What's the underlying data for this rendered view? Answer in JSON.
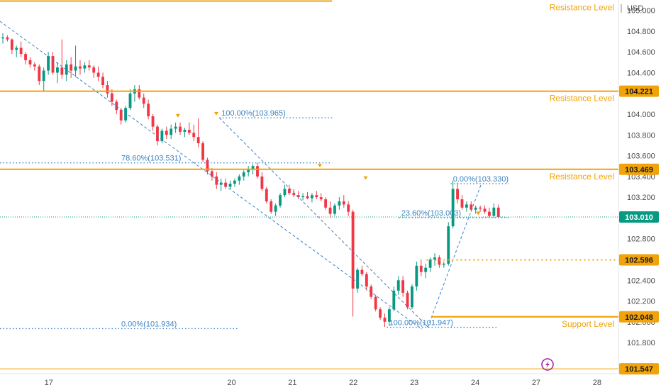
{
  "chart_data": {
    "type": "candlestick",
    "currency": "USD",
    "ylim": [
      101.5,
      105.1
    ],
    "yticks": [
      105.0,
      104.8,
      104.6,
      104.4,
      104.0,
      103.8,
      103.6,
      103.4,
      103.2,
      102.8,
      102.6,
      102.4,
      102.2,
      102.0,
      101.8
    ],
    "ytick_labels": [
      "105.000",
      "104.800",
      "104.600",
      "104.400",
      "104.000",
      "103.800",
      "103.600",
      "103.400",
      "103.200",
      "102.800",
      "102.600",
      "102.400",
      "102.200",
      "102.000",
      "101.800"
    ],
    "x_dates": [
      "17",
      "20",
      "21",
      "22",
      "23",
      "24",
      "27",
      "28"
    ],
    "x_date_positions": [
      0.5,
      3.5,
      4.5,
      5.5,
      6.5,
      7.5,
      8.5,
      9.5
    ],
    "x_range": [
      -0.3,
      9.85
    ],
    "levels": [
      {
        "price": 105.09,
        "label": "Resistance Level",
        "x_end": 5.15,
        "badge": ""
      },
      {
        "price": 104.221,
        "label": "Resistance Level",
        "x_start": -0.3,
        "badge": "104.221"
      },
      {
        "price": 103.469,
        "label": "Resistance Level",
        "x_start": -0.3,
        "badge": "103.469"
      },
      {
        "price": 102.048,
        "label": "Support Level",
        "x_start": 6.78,
        "badge": "102.048"
      }
    ],
    "dotted_levels": [
      {
        "price": 102.596,
        "x_start": 6.7,
        "badge": "102.596",
        "color": "#f0a30a"
      }
    ],
    "current_price": {
      "price": 103.01,
      "badge": "103.010"
    },
    "bottom_badge": {
      "price": 101.547,
      "badge": "101.547"
    },
    "fib_retracements": [
      {
        "price": 103.965,
        "label": "100.00%(103.965)",
        "x_start": 3.3,
        "x_end": 5.15
      },
      {
        "price": 103.531,
        "label": "78.60%(103.531)",
        "x_start": -0.3,
        "x_end": 5.15
      },
      {
        "price": 101.934,
        "label": "0.00%(101.934)",
        "x_start": -0.3,
        "x_end": 3.6
      },
      {
        "price": 103.33,
        "label": "0.00%(103.330)",
        "x_start": 7.1,
        "x_end": 8.05
      },
      {
        "price": 103.003,
        "label": "23.60%(103.003)",
        "x_start": 6.25,
        "x_end": 8.05
      },
      {
        "price": 101.947,
        "label": "100.00%(101.947)",
        "x_start": 6.05,
        "x_end": 7.85
      }
    ],
    "candles": [
      [
        104.73,
        104.78,
        104.68,
        104.74
      ],
      [
        104.74,
        104.76,
        104.7,
        104.72
      ],
      [
        104.72,
        104.73,
        104.58,
        104.62
      ],
      [
        104.62,
        104.66,
        104.55,
        104.64
      ],
      [
        104.64,
        104.7,
        104.55,
        104.58
      ],
      [
        104.58,
        104.6,
        104.48,
        104.52
      ],
      [
        104.52,
        104.55,
        104.45,
        104.48
      ],
      [
        104.48,
        104.5,
        104.42,
        104.46
      ],
      [
        104.46,
        104.48,
        104.28,
        104.32
      ],
      [
        104.32,
        104.45,
        104.22,
        104.42
      ],
      [
        104.42,
        104.6,
        104.38,
        104.56
      ],
      [
        104.56,
        104.6,
        104.38,
        104.4
      ],
      [
        104.4,
        104.5,
        104.3,
        104.45
      ],
      [
        104.45,
        104.72,
        104.34,
        104.38
      ],
      [
        104.38,
        104.52,
        104.32,
        104.48
      ],
      [
        104.48,
        104.55,
        104.35,
        104.42
      ],
      [
        104.42,
        104.66,
        104.36,
        104.46
      ],
      [
        104.46,
        104.52,
        104.38,
        104.44
      ],
      [
        104.44,
        104.5,
        104.4,
        104.47
      ],
      [
        104.47,
        104.52,
        104.42,
        104.45
      ],
      [
        104.45,
        104.47,
        104.35,
        104.4
      ],
      [
        104.4,
        104.46,
        104.32,
        104.36
      ],
      [
        104.36,
        104.4,
        104.25,
        104.28
      ],
      [
        104.28,
        104.32,
        104.16,
        104.2
      ],
      [
        104.2,
        104.24,
        104.08,
        104.12
      ],
      [
        104.12,
        104.14,
        104.0,
        104.04
      ],
      [
        104.04,
        104.06,
        103.9,
        103.94
      ],
      [
        103.94,
        104.08,
        103.92,
        104.06
      ],
      [
        104.06,
        104.24,
        104.04,
        104.2
      ],
      [
        104.2,
        104.28,
        104.12,
        104.24
      ],
      [
        104.24,
        104.28,
        104.14,
        104.16
      ],
      [
        104.16,
        104.2,
        104.06,
        104.1
      ],
      [
        104.1,
        104.14,
        103.95,
        103.98
      ],
      [
        103.98,
        104.0,
        103.84,
        103.88
      ],
      [
        103.88,
        103.9,
        103.7,
        103.74
      ],
      [
        103.74,
        103.86,
        103.72,
        103.84
      ],
      [
        103.84,
        103.88,
        103.76,
        103.8
      ],
      [
        103.8,
        103.9,
        103.76,
        103.86
      ],
      [
        103.86,
        103.92,
        103.82,
        103.88
      ],
      [
        103.88,
        103.92,
        103.8,
        103.83
      ],
      [
        103.83,
        103.87,
        103.78,
        103.85
      ],
      [
        103.85,
        103.92,
        103.8,
        103.82
      ],
      [
        103.82,
        103.9,
        103.74,
        103.78
      ],
      [
        103.78,
        103.96,
        103.68,
        103.72
      ],
      [
        103.72,
        103.74,
        103.54,
        103.56
      ],
      [
        103.56,
        103.58,
        103.42,
        103.45
      ],
      [
        103.45,
        103.48,
        103.36,
        103.4
      ],
      [
        103.4,
        103.44,
        103.28,
        103.32
      ],
      [
        103.32,
        103.38,
        103.26,
        103.34
      ],
      [
        103.34,
        103.38,
        103.28,
        103.3
      ],
      [
        103.3,
        103.36,
        103.28,
        103.33
      ],
      [
        103.33,
        103.38,
        103.3,
        103.36
      ],
      [
        103.36,
        103.42,
        103.32,
        103.4
      ],
      [
        103.4,
        103.46,
        103.36,
        103.44
      ],
      [
        103.44,
        103.5,
        103.4,
        103.47
      ],
      [
        103.47,
        103.52,
        103.42,
        103.5
      ],
      [
        103.5,
        103.53,
        103.38,
        103.4
      ],
      [
        103.4,
        103.44,
        103.26,
        103.28
      ],
      [
        103.28,
        103.3,
        103.14,
        103.16
      ],
      [
        103.16,
        103.18,
        103.04,
        103.06
      ],
      [
        103.06,
        103.14,
        103.02,
        103.12
      ],
      [
        103.12,
        103.24,
        103.1,
        103.22
      ],
      [
        103.22,
        103.32,
        103.2,
        103.28
      ],
      [
        103.28,
        103.32,
        103.22,
        103.24
      ],
      [
        103.24,
        103.28,
        103.2,
        103.22
      ],
      [
        103.22,
        103.26,
        103.18,
        103.2
      ],
      [
        103.2,
        103.24,
        103.17,
        103.21
      ],
      [
        103.21,
        103.25,
        103.18,
        103.19
      ],
      [
        103.19,
        103.24,
        103.15,
        103.22
      ],
      [
        103.22,
        103.26,
        103.18,
        103.2
      ],
      [
        103.2,
        103.24,
        103.16,
        103.18
      ],
      [
        103.18,
        103.2,
        103.08,
        103.1
      ],
      [
        103.1,
        103.16,
        103.0,
        103.04
      ],
      [
        103.04,
        103.14,
        103.02,
        103.12
      ],
      [
        103.12,
        103.2,
        103.08,
        103.16
      ],
      [
        103.16,
        103.22,
        103.1,
        103.13
      ],
      [
        103.13,
        103.16,
        103.02,
        103.06
      ],
      [
        103.06,
        103.08,
        102.05,
        102.32
      ],
      [
        102.32,
        102.52,
        102.28,
        102.5
      ],
      [
        102.5,
        102.54,
        102.44,
        102.46
      ],
      [
        102.46,
        102.48,
        102.3,
        102.34
      ],
      [
        102.34,
        102.36,
        102.22,
        102.24
      ],
      [
        102.24,
        102.26,
        102.1,
        102.12
      ],
      [
        102.12,
        102.14,
        102.02,
        102.04
      ],
      [
        102.04,
        102.08,
        101.95,
        102.0
      ],
      [
        102.0,
        102.14,
        101.96,
        102.12
      ],
      [
        102.12,
        102.34,
        102.1,
        102.3
      ],
      [
        102.3,
        102.44,
        102.26,
        102.4
      ],
      [
        102.4,
        102.44,
        102.24,
        102.28
      ],
      [
        102.28,
        102.3,
        102.12,
        102.14
      ],
      [
        102.14,
        102.36,
        102.12,
        102.34
      ],
      [
        102.34,
        102.58,
        102.3,
        102.54
      ],
      [
        102.54,
        102.6,
        102.44,
        102.48
      ],
      [
        102.48,
        102.56,
        102.42,
        102.52
      ],
      [
        102.52,
        102.62,
        102.48,
        102.6
      ],
      [
        102.6,
        102.66,
        102.54,
        102.62
      ],
      [
        102.62,
        102.64,
        102.52,
        102.55
      ],
      [
        102.55,
        102.58,
        102.52,
        102.56
      ],
      [
        102.56,
        102.96,
        102.54,
        102.92
      ],
      [
        102.92,
        103.36,
        102.9,
        103.28
      ],
      [
        103.28,
        103.34,
        103.14,
        103.18
      ],
      [
        103.18,
        103.22,
        103.08,
        103.1
      ],
      [
        103.1,
        103.16,
        103.06,
        103.13
      ],
      [
        103.13,
        103.16,
        103.06,
        103.08
      ],
      [
        103.08,
        103.12,
        103.04,
        103.1
      ],
      [
        103.1,
        103.12,
        103.06,
        103.09
      ],
      [
        103.09,
        103.12,
        103.04,
        103.06
      ],
      [
        103.06,
        103.1,
        103.0,
        103.02
      ],
      [
        103.02,
        103.14,
        103.0,
        103.1
      ],
      [
        103.1,
        103.13,
        103.0,
        103.01
      ]
    ]
  }
}
